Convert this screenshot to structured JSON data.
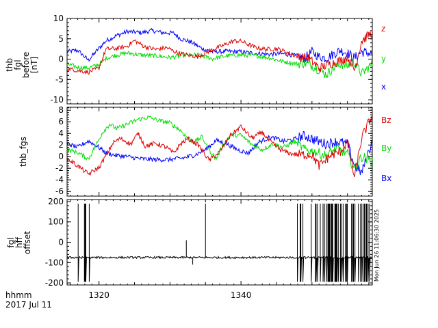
{
  "time_axis": {
    "range": [
      1315.5,
      1358.5
    ],
    "ticks": [
      1320,
      1340
    ],
    "tick_labels": [
      "1320",
      "1340"
    ],
    "label_line1": "hhmm",
    "label_line2": "2017 Jul 11"
  },
  "timestamp": "Mon Jun 26 11:06:30 2025",
  "chart_data": [
    {
      "type": "line",
      "title": "",
      "ylabel": [
        "thb",
        "fgl",
        "before",
        "[nT]"
      ],
      "ylim": [
        -11,
        10
      ],
      "yticks": [
        -10,
        -5,
        0,
        5,
        10
      ],
      "ytick_labels": [
        "-10",
        "-5",
        "0",
        "5",
        "10"
      ],
      "series": [
        {
          "name": "x",
          "color": "#0000ff",
          "anchors": [
            [
              1315.5,
              1.8
            ],
            [
              1317,
              2.2
            ],
            [
              1318.5,
              -0.3
            ],
            [
              1320,
              2.7
            ],
            [
              1321,
              4.5
            ],
            [
              1322.5,
              5.8
            ],
            [
              1324,
              6.8
            ],
            [
              1326,
              6.5
            ],
            [
              1327.5,
              7.0
            ],
            [
              1329,
              6.5
            ],
            [
              1330.5,
              6.4
            ],
            [
              1331.5,
              5.0
            ],
            [
              1333,
              4.2
            ],
            [
              1334.5,
              2.6
            ],
            [
              1336,
              1.8
            ],
            [
              1338,
              1.9
            ],
            [
              1340,
              1.8
            ],
            [
              1342,
              1.4
            ],
            [
              1344,
              1.2
            ],
            [
              1346,
              1.3
            ],
            [
              1348,
              0.8
            ],
            [
              1349,
              0.2
            ],
            [
              1350,
              1.8
            ],
            [
              1351,
              0.6
            ],
            [
              1352,
              0.2
            ],
            [
              1353,
              1.2
            ],
            [
              1354,
              2.2
            ],
            [
              1355,
              1.5
            ],
            [
              1356,
              0.3
            ],
            [
              1357,
              1.8
            ],
            [
              1358.5,
              1.3
            ]
          ]
        },
        {
          "name": "y",
          "color": "#00dd00",
          "anchors": [
            [
              1315.5,
              -1.2
            ],
            [
              1317,
              -2.0
            ],
            [
              1318.5,
              -2.2
            ],
            [
              1320,
              -1.3
            ],
            [
              1321,
              0.2
            ],
            [
              1322.5,
              1.0
            ],
            [
              1324,
              1.5
            ],
            [
              1326,
              1.0
            ],
            [
              1328,
              0.8
            ],
            [
              1330,
              0.4
            ],
            [
              1332,
              0.9
            ],
            [
              1334,
              1.0
            ],
            [
              1336,
              0.1
            ],
            [
              1338,
              0.8
            ],
            [
              1340,
              1.0
            ],
            [
              1342,
              0.9
            ],
            [
              1344,
              0.3
            ],
            [
              1346,
              -0.6
            ],
            [
              1348,
              -1.2
            ],
            [
              1349,
              -1.0
            ],
            [
              1350,
              -1.6
            ],
            [
              1351,
              -2.6
            ],
            [
              1352,
              -3.8
            ],
            [
              1353,
              -2.2
            ],
            [
              1354,
              -1.2
            ],
            [
              1355,
              -1.6
            ],
            [
              1356,
              -0.8
            ],
            [
              1357,
              -3.6
            ],
            [
              1358.5,
              -1.2
            ]
          ]
        },
        {
          "name": "z",
          "color": "#dd0000",
          "anchors": [
            [
              1315.5,
              -2.3
            ],
            [
              1317,
              -2.8
            ],
            [
              1318.5,
              -3.2
            ],
            [
              1320,
              -2.2
            ],
            [
              1321,
              2.5
            ],
            [
              1322.5,
              2.6
            ],
            [
              1324,
              3.2
            ],
            [
              1325,
              4.6
            ],
            [
              1326.5,
              3.0
            ],
            [
              1328,
              2.4
            ],
            [
              1329.5,
              2.8
            ],
            [
              1331,
              1.6
            ],
            [
              1333,
              0.8
            ],
            [
              1334,
              0.6
            ],
            [
              1335.5,
              2.0
            ],
            [
              1337,
              3.0
            ],
            [
              1339,
              4.5
            ],
            [
              1340,
              4.4
            ],
            [
              1342,
              2.9
            ],
            [
              1343.5,
              2.4
            ],
            [
              1345,
              2.6
            ],
            [
              1346.5,
              1.7
            ],
            [
              1348,
              0.6
            ],
            [
              1349.5,
              0.2
            ],
            [
              1351,
              -2.2
            ],
            [
              1352.5,
              -1.2
            ],
            [
              1354,
              -0.4
            ],
            [
              1355,
              0.6
            ],
            [
              1356,
              -2.6
            ],
            [
              1357,
              4.5
            ],
            [
              1358.5,
              6.6
            ]
          ]
        }
      ],
      "legend": [
        "z",
        "y",
        "x"
      ]
    },
    {
      "type": "line",
      "title": "",
      "ylabel": [
        "thb_fgs"
      ],
      "ylim": [
        -6.8,
        8.5
      ],
      "yticks": [
        -6,
        -4,
        -2,
        0,
        2,
        4,
        6,
        8
      ],
      "ytick_labels": [
        "-6",
        "-4",
        "-2",
        "0",
        "2",
        "4",
        "6",
        "8"
      ],
      "series": [
        {
          "name": "Bx",
          "color": "#0000ff",
          "anchors": [
            [
              1315.5,
              2.2
            ],
            [
              1317,
              1.6
            ],
            [
              1318.5,
              2.7
            ],
            [
              1320,
              1.6
            ],
            [
              1321,
              0.6
            ],
            [
              1322.5,
              0.2
            ],
            [
              1324,
              0.0
            ],
            [
              1326,
              -0.4
            ],
            [
              1328,
              -0.5
            ],
            [
              1330,
              -0.5
            ],
            [
              1332,
              -0.2
            ],
            [
              1333.5,
              0.3
            ],
            [
              1335,
              1.2
            ],
            [
              1336.5,
              2.8
            ],
            [
              1338,
              2.2
            ],
            [
              1339.5,
              1.2
            ],
            [
              1341,
              0.6
            ],
            [
              1342.5,
              2.5
            ],
            [
              1344,
              3.3
            ],
            [
              1345,
              3.1
            ],
            [
              1346,
              2.6
            ],
            [
              1347.5,
              3.0
            ],
            [
              1349,
              3.6
            ],
            [
              1350.5,
              2.8
            ],
            [
              1352,
              2.2
            ],
            [
              1353.5,
              2.6
            ],
            [
              1355,
              2.2
            ],
            [
              1356,
              -1.5
            ],
            [
              1357,
              -2.8
            ],
            [
              1358.5,
              2.8
            ]
          ]
        },
        {
          "name": "By",
          "color": "#00dd00",
          "anchors": [
            [
              1315.5,
              1.2
            ],
            [
              1317,
              0.7
            ],
            [
              1318.5,
              -0.4
            ],
            [
              1319.5,
              1.8
            ],
            [
              1320.5,
              4.2
            ],
            [
              1321.5,
              5.6
            ],
            [
              1322.5,
              4.8
            ],
            [
              1324,
              5.6
            ],
            [
              1325.5,
              6.4
            ],
            [
              1327,
              6.8
            ],
            [
              1328.5,
              6.2
            ],
            [
              1330,
              5.8
            ],
            [
              1331.5,
              4.5
            ],
            [
              1332.5,
              3.2
            ],
            [
              1333.5,
              2.6
            ],
            [
              1334.5,
              3.4
            ],
            [
              1335.5,
              1.2
            ],
            [
              1336.5,
              -0.4
            ],
            [
              1337.5,
              2.1
            ],
            [
              1338.5,
              3.7
            ],
            [
              1340,
              3.7
            ],
            [
              1341.5,
              2.1
            ],
            [
              1343,
              1.2
            ],
            [
              1344.5,
              2.2
            ],
            [
              1346,
              1.6
            ],
            [
              1347.5,
              2.6
            ],
            [
              1349,
              1.2
            ],
            [
              1350.5,
              0.8
            ],
            [
              1352,
              0.2
            ],
            [
              1353.5,
              1.4
            ],
            [
              1355,
              0.5
            ],
            [
              1356,
              -2.2
            ],
            [
              1357,
              0.0
            ],
            [
              1358.5,
              -0.6
            ]
          ]
        },
        {
          "name": "Bz",
          "color": "#dd0000",
          "anchors": [
            [
              1315.5,
              -0.3
            ],
            [
              1317,
              -1.6
            ],
            [
              1318.5,
              -3.0
            ],
            [
              1320,
              -1.9
            ],
            [
              1321,
              0.2
            ],
            [
              1322,
              2.4
            ],
            [
              1323,
              3.1
            ],
            [
              1324.5,
              2.2
            ],
            [
              1325.5,
              4.0
            ],
            [
              1326.5,
              1.8
            ],
            [
              1328,
              2.3
            ],
            [
              1329.5,
              1.6
            ],
            [
              1330.5,
              0.6
            ],
            [
              1331.5,
              2.2
            ],
            [
              1332.5,
              3.1
            ],
            [
              1334,
              2.0
            ],
            [
              1335.5,
              -0.6
            ],
            [
              1337,
              0.8
            ],
            [
              1338.5,
              3.6
            ],
            [
              1340,
              5.2
            ],
            [
              1341.5,
              3.2
            ],
            [
              1343,
              4.2
            ],
            [
              1344,
              2.7
            ],
            [
              1345.5,
              1.2
            ],
            [
              1347,
              0.5
            ],
            [
              1348.5,
              0.3
            ],
            [
              1350,
              0.4
            ],
            [
              1351,
              -1.6
            ],
            [
              1352.5,
              0.1
            ],
            [
              1354,
              0.9
            ],
            [
              1355,
              2.4
            ],
            [
              1356,
              -3.6
            ],
            [
              1357,
              3.2
            ],
            [
              1358.5,
              7.2
            ]
          ]
        }
      ],
      "legend": [
        "Bz",
        "By",
        "Bx"
      ]
    },
    {
      "type": "line",
      "title": "",
      "ylabel": [
        "fgl",
        "hff",
        "offset"
      ],
      "ylim": [
        -210,
        210
      ],
      "yticks": [
        -200,
        -100,
        0,
        100,
        200
      ],
      "ytick_labels": [
        "-200",
        "-100",
        "0",
        "100",
        "200"
      ],
      "baseline": -75,
      "spike_bands": [
        [
          1316.7,
          1318.9
        ],
        [
          1347.6,
          1358.3
        ]
      ],
      "single_spikes": [
        [
          1332.3,
          10
        ],
        [
          1333.2,
          -110
        ],
        [
          1335.0,
          190
        ]
      ],
      "spike_high": 190,
      "spike_low": -195,
      "series": [
        {
          "name": "offset",
          "color": "#000000"
        }
      ]
    }
  ]
}
